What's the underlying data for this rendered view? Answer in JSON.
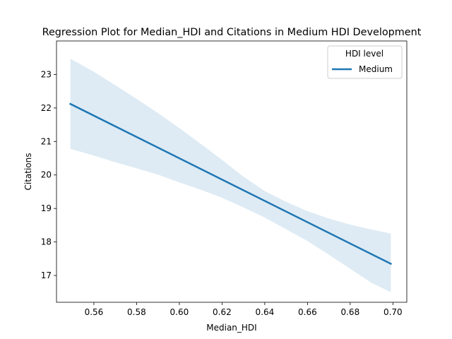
{
  "chart_data": {
    "type": "line",
    "title": "Regression Plot for Median_HDI and Citations in Medium HDI Development",
    "xlabel": "Median_HDI",
    "ylabel": "Citations",
    "xlim": [
      0.5425,
      0.7065
    ],
    "ylim": [
      16.2,
      24.0
    ],
    "xticks": [
      0.56,
      0.58,
      0.6,
      0.62,
      0.64,
      0.66,
      0.68,
      0.7
    ],
    "xtick_labels": [
      "0.56",
      "0.58",
      "0.60",
      "0.62",
      "0.64",
      "0.66",
      "0.68",
      "0.70"
    ],
    "yticks": [
      17,
      18,
      19,
      20,
      21,
      22,
      23
    ],
    "ytick_labels": [
      "17",
      "18",
      "19",
      "20",
      "21",
      "22",
      "23"
    ],
    "grid": false,
    "legend": {
      "title": "HDI level",
      "placement": "top-right"
    },
    "series": [
      {
        "name": "Medium",
        "color": "#1f77b4",
        "band_color": "#1f77b4",
        "x": [
          0.549,
          0.699
        ],
        "y": [
          22.12,
          17.35
        ],
        "ci": {
          "x": [
            0.549,
            0.56,
            0.57,
            0.58,
            0.59,
            0.6,
            0.61,
            0.62,
            0.63,
            0.64,
            0.65,
            0.66,
            0.67,
            0.68,
            0.69,
            0.699
          ],
          "upper": [
            23.47,
            23.08,
            22.68,
            22.27,
            21.85,
            21.4,
            20.93,
            20.45,
            19.95,
            19.52,
            19.2,
            18.92,
            18.7,
            18.52,
            18.37,
            18.25
          ],
          "lower": [
            20.78,
            20.58,
            20.38,
            20.2,
            20.01,
            19.78,
            19.56,
            19.32,
            19.03,
            18.73,
            18.38,
            18.03,
            17.62,
            17.2,
            16.78,
            16.5
          ]
        }
      }
    ]
  }
}
